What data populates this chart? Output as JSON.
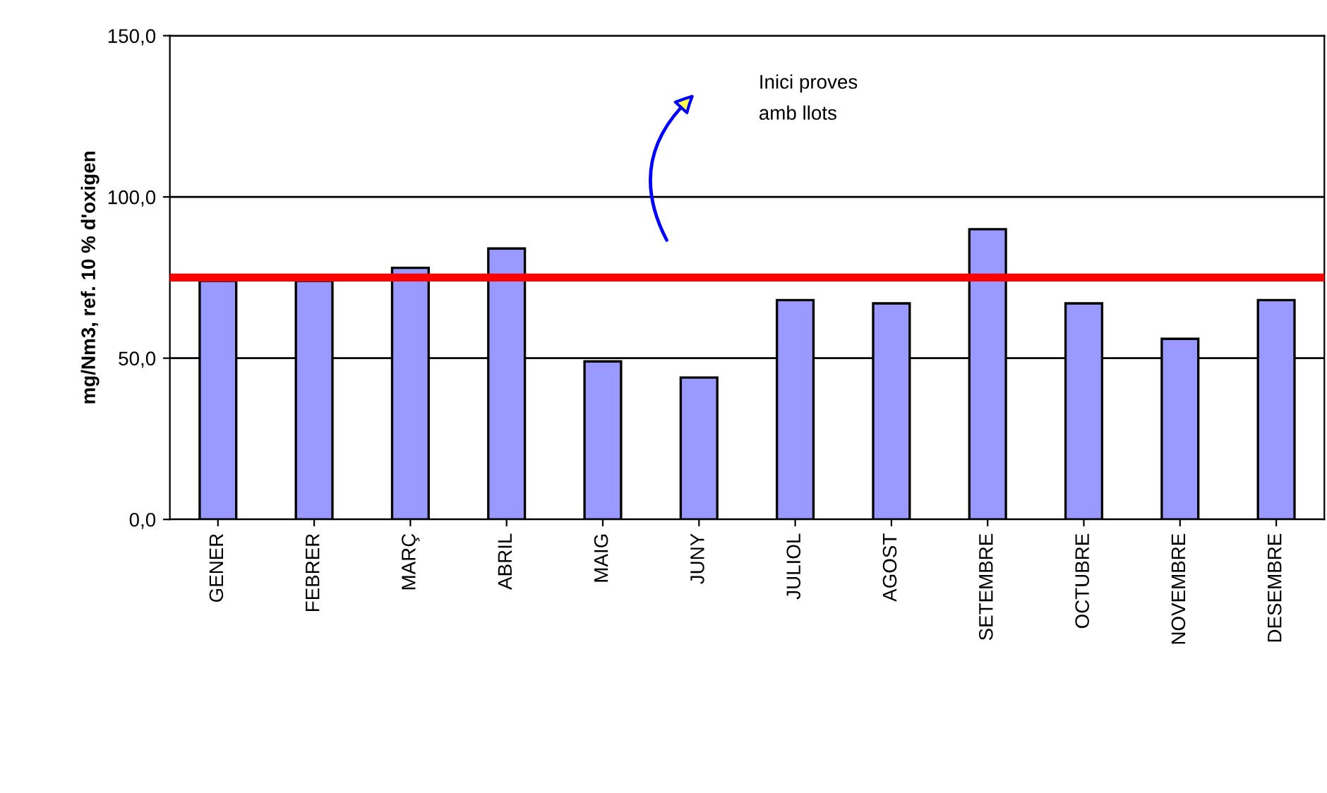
{
  "chart_data": {
    "type": "bar",
    "ylabel": "mg/Nm3, ref. 10 % d'oxigen",
    "categories": [
      "GENER",
      "FEBRER",
      "MARÇ",
      "ABRIL",
      "MAIG",
      "JUNY",
      "JULIOL",
      "AGOST",
      "SETEMBRE",
      "OCTUBRE",
      "NOVEMBRE",
      "DESEMBRE"
    ],
    "series": [
      {
        "color": "#9999ff",
        "values": [
          74,
          74,
          78,
          84,
          49,
          44,
          68,
          67,
          90,
          67,
          56,
          68
        ]
      }
    ],
    "ylim": [
      0,
      150
    ],
    "yticks": [
      {
        "value": 0,
        "label": "0,0"
      },
      {
        "value": 50,
        "label": "50,0"
      },
      {
        "value": 100,
        "label": "100,0"
      },
      {
        "value": 150,
        "label": "150,0"
      }
    ],
    "grid": "y",
    "ref_lines": [
      {
        "axis": "y",
        "value": 75,
        "color": "#ff0000"
      }
    ],
    "annotations": [
      "Inici proves\namb llots"
    ]
  }
}
